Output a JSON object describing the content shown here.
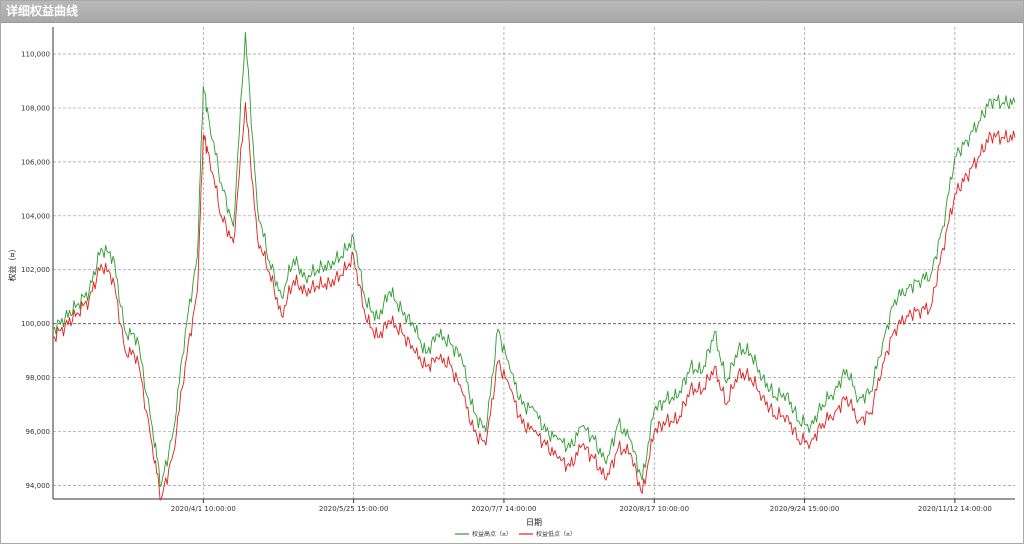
{
  "window": {
    "title": "详细权益曲线"
  },
  "chart_data": {
    "type": "line",
    "title": "",
    "xlabel": "日期",
    "ylabel": "权益（¤）",
    "ylim": [
      93500,
      111000
    ],
    "yticks": [
      94000,
      96000,
      98000,
      100000,
      102000,
      104000,
      106000,
      108000,
      110000
    ],
    "ytick_labels": [
      "94,000",
      "96,000",
      "98,000",
      "100,000",
      "102,000",
      "104,000",
      "106,000",
      "108,000",
      "110,000"
    ],
    "x_ticks": [
      {
        "label": "2020/4/1 10:00:00",
        "x": 50
      },
      {
        "label": "2020/5/25 15:00:00",
        "x": 100
      },
      {
        "label": "2020/7/7 14:00:00",
        "x": 150
      },
      {
        "label": "2020/8/17 10:00:00",
        "x": 200
      },
      {
        "label": "2020/9/24 15:00:00",
        "x": 250
      },
      {
        "label": "2020/11/12 14:00:00",
        "x": 300
      }
    ],
    "baseline": 100000,
    "grid": true,
    "legend_position": "bottom-center",
    "x": [
      0,
      4,
      8,
      12,
      16,
      20,
      24,
      28,
      33,
      36,
      40,
      44,
      48,
      50,
      52,
      56,
      60,
      64,
      68,
      72,
      76,
      80,
      84,
      88,
      92,
      96,
      100,
      104,
      108,
      112,
      116,
      120,
      124,
      128,
      132,
      136,
      140,
      144,
      148,
      152,
      156,
      160,
      164,
      168,
      172,
      176,
      180,
      184,
      188,
      192,
      196,
      200,
      204,
      208,
      212,
      216,
      220,
      224,
      228,
      232,
      236,
      240,
      244,
      248,
      252,
      256,
      260,
      264,
      268,
      272,
      276,
      280,
      284,
      288,
      292,
      296,
      300,
      304,
      308,
      312,
      316,
      320
    ],
    "series": [
      {
        "name": "权益高点（¤）",
        "color": "#2e9b2e",
        "values": [
          99800,
          100200,
          100700,
          101200,
          102800,
          102500,
          99700,
          99500,
          96200,
          94000,
          96000,
          99700,
          102500,
          108800,
          107500,
          105200,
          103600,
          110800,
          104300,
          102300,
          101000,
          102400,
          101700,
          102000,
          102200,
          102500,
          103200,
          100800,
          100200,
          101200,
          100500,
          99900,
          98900,
          99600,
          99300,
          98700,
          96700,
          96000,
          99800,
          98300,
          97000,
          96800,
          96000,
          95700,
          95400,
          96200,
          95700,
          94800,
          96300,
          95700,
          94200,
          96800,
          97200,
          97300,
          98400,
          98200,
          99700,
          97800,
          99100,
          98900,
          98000,
          97300,
          97400,
          96400,
          96200,
          97000,
          97500,
          98300,
          97200,
          97500,
          99300,
          100900,
          101300,
          101600,
          101800,
          103600,
          106200,
          106800,
          107500,
          108300,
          108200,
          108200
        ]
      },
      {
        "name": "权益低点（¤）",
        "color": "#e0201e",
        "values": [
          99500,
          99900,
          100400,
          100900,
          102200,
          101700,
          99000,
          98800,
          95500,
          93500,
          95200,
          98500,
          101200,
          107000,
          106200,
          104000,
          103000,
          108200,
          103200,
          101900,
          100300,
          101600,
          101200,
          101400,
          101500,
          101800,
          102500,
          100200,
          99500,
          100100,
          99700,
          99000,
          98400,
          98700,
          98500,
          97500,
          96000,
          95500,
          98600,
          97600,
          96300,
          96000,
          95500,
          95000,
          94700,
          95500,
          95000,
          94200,
          95400,
          95200,
          93700,
          96000,
          96400,
          96400,
          97600,
          97500,
          98400,
          97000,
          98200,
          98000,
          97300,
          96600,
          96600,
          95700,
          95600,
          96300,
          96700,
          97300,
          96400,
          96700,
          98500,
          99800,
          100300,
          100500,
          100600,
          102800,
          104800,
          105500,
          106200,
          107000,
          106900,
          106900
        ]
      }
    ]
  }
}
